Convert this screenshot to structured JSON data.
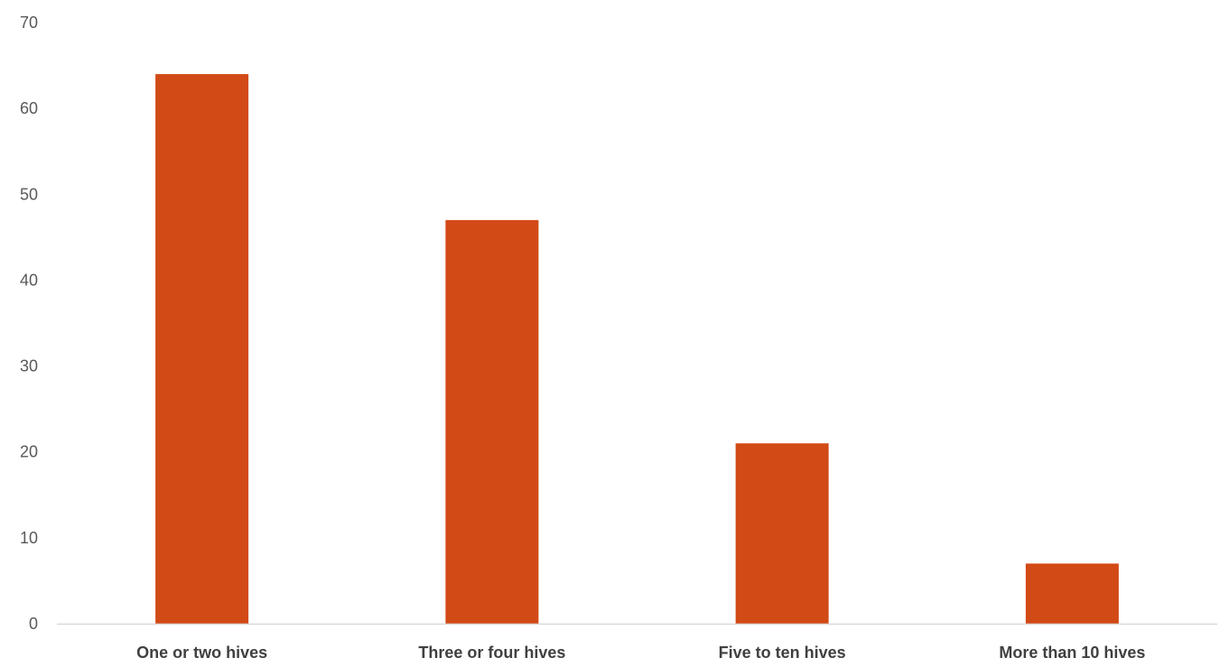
{
  "chart_data": {
    "type": "bar",
    "title": "",
    "xlabel": "",
    "ylabel": "",
    "categories": [
      "One or two hives",
      "Three or four hives",
      "Five to ten hives",
      "More than 10 hives"
    ],
    "values": [
      64,
      47,
      21,
      7
    ],
    "ylim": [
      0,
      70
    ],
    "yticks": [
      0,
      10,
      20,
      30,
      40,
      50,
      60,
      70
    ],
    "grid": false,
    "legend": "none",
    "colors": {
      "bar": "#D24A16",
      "axis_line": "#D9D9D9",
      "tick_text": "#595959",
      "category_text": "#404040"
    }
  }
}
